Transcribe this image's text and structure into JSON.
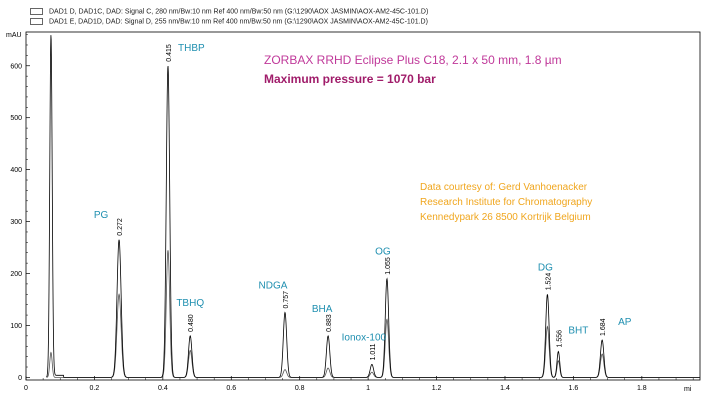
{
  "legend": [
    {
      "text": "DAD1 D, DAD1C, DAD: Signal C, 280 nm/Bw:10 nm Ref 400 nm/Bw:50 nm (G:\\1290\\AOX JASMIN\\AOX-AM2-45C-101.D)"
    },
    {
      "text": "DAD1 E, DAD1D, DAD: Signal D, 255 nm/Bw:10 nm Ref 400 nm/Bw:50 nm (G:\\1290\\AOX JASMIN\\AOX-AM2-45C-101.D)"
    }
  ],
  "column": {
    "name": "ZORBAX RRHD Eclipse Plus C18, 2.1 x 50 mm, 1.8 µm",
    "pressure": "Maximum pressure = 1070 bar"
  },
  "credit": {
    "line1": "Data courtesy of: Gerd Vanhoenacker",
    "line2": "Research Institute for Chromatography",
    "line3": "Kennedypark 26   8500 Kortrijk   Belgium"
  },
  "colors": {
    "trace": "#000000",
    "trace2": "#555555",
    "peak_name": "#1f8fb0",
    "column_name": "#c0399a",
    "credit": "#f0a61e"
  },
  "chart_data": {
    "type": "line",
    "xlabel": "mi",
    "ylabel": "mAU",
    "xlim": [
      0,
      1.97
    ],
    "ylim": [
      -5,
      665
    ],
    "x_ticks": [
      "0",
      "0.2",
      "0.4",
      "0.6",
      "0.8",
      "1",
      "1.2",
      "1.4",
      "1.6",
      "1.8"
    ],
    "y_ticks": [
      "0",
      "100",
      "200",
      "300",
      "400",
      "500",
      "600"
    ],
    "void_peak": {
      "x": 0.073,
      "y": 660,
      "y2": 48
    },
    "peaks": [
      {
        "name": "PG",
        "rt_label": "0.272",
        "rt": 0.272,
        "height": 265,
        "height2": 160,
        "width": 0.006
      },
      {
        "name": "THBP",
        "rt_label": "0.415",
        "rt": 0.415,
        "height": 600,
        "height2": 245,
        "width": 0.005
      },
      {
        "name": "TBHQ",
        "rt_label": "0.480",
        "rt": 0.48,
        "height": 80,
        "height2": 52,
        "width": 0.005
      },
      {
        "name": "NDGA",
        "rt_label": "0.757",
        "rt": 0.757,
        "height": 125,
        "height2": 15,
        "width": 0.005
      },
      {
        "name": "BHA",
        "rt_label": "0.883",
        "rt": 0.883,
        "height": 80,
        "height2": 18,
        "width": 0.005
      },
      {
        "name": "Ionox-100",
        "rt_label": "1.011",
        "rt": 1.011,
        "height": 25,
        "height2": 10,
        "width": 0.005
      },
      {
        "name": "OG",
        "rt_label": "1.055",
        "rt": 1.055,
        "height": 190,
        "height2": 112,
        "width": 0.005
      },
      {
        "name": "DG",
        "rt_label": "1.524",
        "rt": 1.524,
        "height": 160,
        "height2": 98,
        "width": 0.005
      },
      {
        "name": "BHT",
        "rt_label": "1.556",
        "rt": 1.556,
        "height": 50,
        "height2": 32,
        "width": 0.004
      },
      {
        "name": "AP",
        "rt_label": "1.684",
        "rt": 1.684,
        "height": 72,
        "height2": 45,
        "width": 0.005
      }
    ]
  }
}
